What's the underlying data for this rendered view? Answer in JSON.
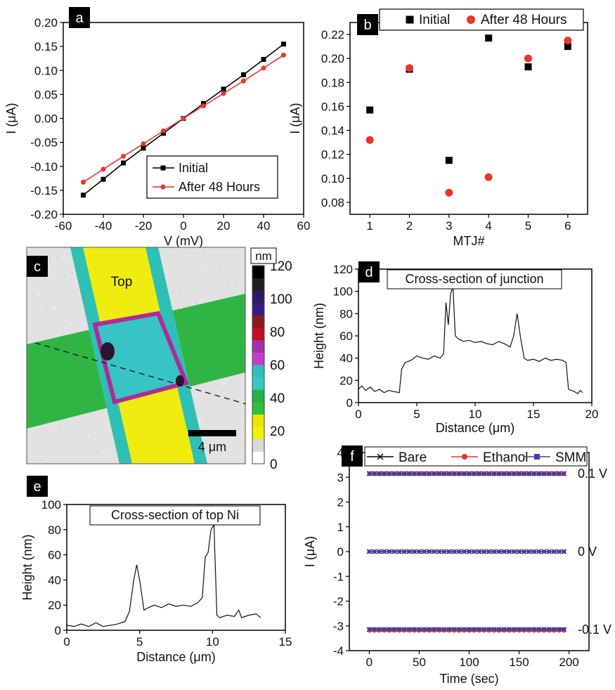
{
  "chart_data": [
    {
      "panel": "a",
      "type": "line",
      "xlabel": "V (mV)",
      "ylabel": "I (μA)",
      "xlim": [
        -60,
        60
      ],
      "ylim": [
        -0.2,
        0.2
      ],
      "xticks": [
        "-60",
        "-40",
        "-20",
        "0",
        "20",
        "40",
        "60"
      ],
      "yticks": [
        "-0.20",
        "-0.15",
        "-0.10",
        "-0.05",
        "0.00",
        "0.05",
        "0.10",
        "0.15",
        "0.20"
      ],
      "x": [
        -50,
        -40,
        -30,
        -20,
        -10,
        0,
        10,
        20,
        30,
        40,
        50
      ],
      "series": [
        {
          "name": "Initial",
          "color": "#000000",
          "marker": "square",
          "values": [
            -0.16,
            -0.127,
            -0.093,
            -0.062,
            -0.031,
            0.0,
            0.031,
            0.061,
            0.091,
            0.123,
            0.155
          ]
        },
        {
          "name": "After 48 Hours",
          "color": "#e8372a",
          "marker": "circle",
          "values": [
            -0.133,
            -0.106,
            -0.079,
            -0.053,
            -0.026,
            0.0,
            0.026,
            0.052,
            0.078,
            0.105,
            0.132
          ]
        }
      ],
      "legend": "bottom-right"
    },
    {
      "panel": "b",
      "type": "scatter",
      "xlabel": "MTJ#",
      "ylabel": "I (μA)",
      "xlim": [
        0.5,
        6.5
      ],
      "ylim": [
        0.07,
        0.23
      ],
      "xticks": [
        "1",
        "2",
        "3",
        "4",
        "5",
        "6"
      ],
      "yticks": [
        "0.08",
        "0.10",
        "0.12",
        "0.14",
        "0.16",
        "0.18",
        "0.20",
        "0.22"
      ],
      "x": [
        1,
        2,
        3,
        4,
        5,
        6
      ],
      "series": [
        {
          "name": "Initial",
          "color": "#000000",
          "marker": "square",
          "values": [
            0.157,
            0.191,
            0.115,
            0.217,
            0.193,
            0.21
          ]
        },
        {
          "name": "After 48 Hours",
          "color": "#e8372a",
          "marker": "circle",
          "values": [
            0.132,
            0.192,
            0.088,
            0.101,
            0.2,
            0.215
          ]
        }
      ],
      "legend": "top"
    },
    {
      "panel": "c",
      "type": "heatmap",
      "annotation": "Top",
      "scalebar": "4 μm",
      "colorbar_unit": "nm",
      "colorbar_ticks": [
        "120",
        "100",
        "80",
        "60",
        "40",
        "20",
        "0"
      ],
      "colorbar_colors": [
        "#ffffff",
        "#d8d8d8",
        "#f4f000",
        "#e6e600",
        "#2fbf3f",
        "#28b04a",
        "#35c8c0",
        "#30bcc0",
        "#c040c8",
        "#a030b0",
        "#c01020",
        "#8a1a20",
        "#3a1a80",
        "#2a1a60",
        "#202020",
        "#000000"
      ]
    },
    {
      "panel": "d",
      "type": "line",
      "title": "Cross-section of junction",
      "xlabel": "Distance (μm)",
      "ylabel": "Height (nm)",
      "xlim": [
        0,
        20
      ],
      "ylim": [
        0,
        120
      ],
      "xticks": [
        "0",
        "5",
        "10",
        "15",
        "20"
      ],
      "yticks": [
        "0",
        "20",
        "40",
        "60",
        "80",
        "100",
        "120"
      ],
      "x": [
        0,
        0.3,
        0.6,
        1.0,
        1.4,
        1.8,
        2.2,
        2.6,
        3.0,
        3.5,
        3.7,
        4.0,
        4.5,
        5.0,
        5.5,
        6.0,
        6.5,
        7.0,
        7.3,
        7.5,
        7.7,
        7.9,
        8.1,
        8.3,
        8.6,
        9.0,
        9.5,
        10.0,
        10.5,
        11.0,
        11.5,
        12.0,
        12.5,
        13.0,
        13.3,
        13.6,
        13.9,
        14.2,
        14.5,
        15.0,
        15.5,
        16.0,
        16.5,
        17.0,
        17.5,
        17.8,
        18.0,
        18.5,
        18.8,
        19.0,
        19.2
      ],
      "series": [
        {
          "name": "",
          "color": "#111111",
          "values": [
            12,
            15,
            11,
            14,
            10,
            12,
            9,
            11,
            10,
            9,
            30,
            36,
            38,
            42,
            40,
            39,
            42,
            40,
            44,
            90,
            70,
            98,
            104,
            60,
            57,
            55,
            56,
            54,
            55,
            53,
            52,
            55,
            53,
            50,
            60,
            80,
            58,
            40,
            38,
            39,
            37,
            40,
            38,
            39,
            38,
            36,
            12,
            10,
            8,
            11,
            9
          ]
        }
      ]
    },
    {
      "panel": "e",
      "type": "line",
      "title": "Cross-section of top Ni",
      "xlabel": "Distance (μm)",
      "ylabel": "Height (nm)",
      "xlim": [
        0,
        15
      ],
      "ylim": [
        0,
        100
      ],
      "xticks": [
        "0",
        "5",
        "10",
        "15"
      ],
      "yticks": [
        "0",
        "20",
        "40",
        "60",
        "80",
        "100"
      ],
      "x": [
        0,
        0.5,
        1.0,
        1.5,
        2.0,
        2.5,
        3.0,
        3.5,
        4.0,
        4.3,
        4.6,
        4.8,
        5.0,
        5.3,
        5.6,
        6.0,
        6.5,
        7.0,
        7.5,
        8.0,
        8.5,
        9.0,
        9.3,
        9.5,
        9.7,
        9.9,
        10.1,
        10.3,
        10.5,
        11.0,
        11.5,
        11.8,
        12.0,
        12.5,
        13.0,
        13.3
      ],
      "series": [
        {
          "name": "",
          "color": "#111111",
          "values": [
            4,
            3,
            5,
            3,
            6,
            3,
            4,
            5,
            7,
            15,
            40,
            52,
            40,
            16,
            18,
            20,
            18,
            21,
            19,
            20,
            19,
            22,
            26,
            58,
            62,
            80,
            84,
            12,
            10,
            12,
            11,
            16,
            10,
            12,
            13,
            10
          ]
        }
      ]
    },
    {
      "panel": "f",
      "type": "line",
      "xlabel": "Time (sec)",
      "ylabel": "I (μA)",
      "xlim": [
        -20,
        220
      ],
      "ylim": [
        -4,
        4
      ],
      "xticks": [
        "0",
        "50",
        "100",
        "150",
        "200"
      ],
      "yticks": [
        "-4",
        "-3",
        "-2",
        "-1",
        "0",
        "1",
        "2",
        "3",
        "4"
      ],
      "x": [
        0,
        195
      ],
      "series": [
        {
          "name": "Bare",
          "color": "#000000",
          "marker": "x",
          "levels": [
            3.15,
            0.0,
            -3.15
          ]
        },
        {
          "name": "Ethanol",
          "color": "#e8372a",
          "marker": "circle",
          "levels": [
            3.17,
            0.0,
            -3.2
          ]
        },
        {
          "name": "SMM",
          "color": "#4a3aa8",
          "marker": "square",
          "levels": [
            3.13,
            0.0,
            -3.13
          ]
        }
      ],
      "level_labels": [
        "0.1 V",
        "0 V",
        "-0.1 V"
      ],
      "legend": "top"
    }
  ],
  "panel_labels": [
    "a",
    "b",
    "c",
    "d",
    "e",
    "f"
  ]
}
